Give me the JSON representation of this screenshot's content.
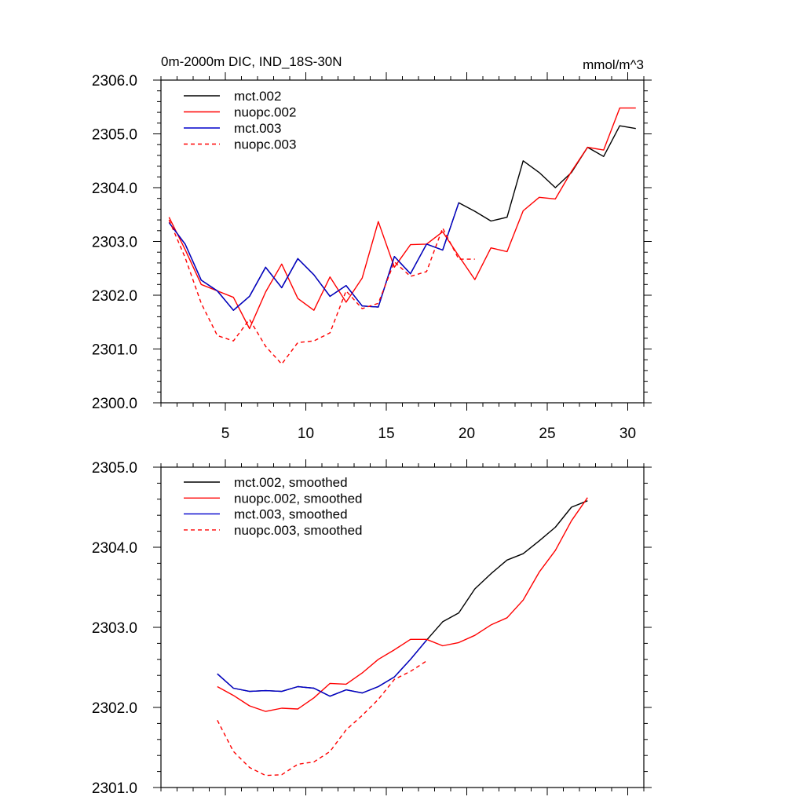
{
  "chart_data": [
    {
      "type": "line",
      "title": "0m-2000m DIC, IND_18S-30N",
      "units": "mmol/m^3",
      "xlim": [
        1,
        31
      ],
      "ylim": [
        2300,
        2306
      ],
      "xticks": [
        5,
        10,
        15,
        20,
        25,
        30
      ],
      "xtick_labels": [
        "5",
        "10",
        "15",
        "20",
        "25",
        "30"
      ],
      "yticks": [
        2300,
        2301,
        2302,
        2303,
        2304,
        2305,
        2306
      ],
      "ytick_labels": [
        "2300.0",
        "2301.0",
        "2302.0",
        "2303.0",
        "2304.0",
        "2305.0",
        "2306.0"
      ],
      "series": [
        {
          "name": "mct.002",
          "color": "#000000",
          "dash": "solid",
          "x": [
            1.5,
            2.5,
            3.5,
            4.5,
            5.5,
            6.5,
            7.5,
            8.5,
            9.5,
            10.5,
            11.5,
            12.5,
            13.5,
            14.5,
            15.5,
            16.5,
            17.5,
            18.5,
            19.5,
            20.5,
            21.5,
            22.5,
            23.5,
            24.5,
            25.5,
            26.5,
            27.5,
            28.5,
            29.5,
            30.5
          ],
          "y": [
            2303.35,
            2302.95,
            2302.28,
            2302.08,
            2301.72,
            2301.98,
            2302.52,
            2302.14,
            2302.68,
            2302.38,
            2301.98,
            2302.18,
            2301.8,
            2301.78,
            2302.72,
            2302.4,
            2302.95,
            2302.84,
            2303.72,
            2303.56,
            2303.38,
            2303.45,
            2304.5,
            2304.28,
            2304.0,
            2304.28,
            2304.75,
            2304.58,
            2305.15,
            2305.1
          ]
        },
        {
          "name": "nuopc.002",
          "color": "#ff0000",
          "dash": "solid",
          "x": [
            1.5,
            2.5,
            3.5,
            4.5,
            5.5,
            6.5,
            7.5,
            8.5,
            9.5,
            10.5,
            11.5,
            12.5,
            13.5,
            14.5,
            15.5,
            16.5,
            17.5,
            18.5,
            19.5,
            20.5,
            21.5,
            22.5,
            23.5,
            24.5,
            25.5,
            26.5,
            27.5,
            28.5,
            29.5,
            30.5
          ],
          "y": [
            2303.45,
            2302.85,
            2302.2,
            2302.08,
            2301.96,
            2301.38,
            2302.06,
            2302.58,
            2301.94,
            2301.72,
            2302.34,
            2301.87,
            2302.32,
            2303.37,
            2302.52,
            2302.94,
            2302.95,
            2303.18,
            2302.73,
            2302.29,
            2302.88,
            2302.81,
            2303.57,
            2303.82,
            2303.79,
            2304.3,
            2304.75,
            2304.7,
            2305.48,
            2305.48
          ]
        },
        {
          "name": "mct.003",
          "color": "#0000cc",
          "dash": "solid",
          "x": [
            1.5,
            2.5,
            3.5,
            4.5,
            5.5,
            6.5,
            7.5,
            8.5,
            9.5,
            10.5,
            11.5,
            12.5,
            13.5,
            14.5,
            15.5,
            16.5,
            17.5,
            18.5,
            19.5
          ],
          "y": [
            2303.35,
            2302.95,
            2302.28,
            2302.08,
            2301.72,
            2301.98,
            2302.52,
            2302.14,
            2302.68,
            2302.38,
            2301.98,
            2302.18,
            2301.8,
            2301.78,
            2302.72,
            2302.4,
            2302.95,
            2302.84,
            2303.72
          ]
        },
        {
          "name": "nuopc.003",
          "color": "#ff0000",
          "dash": "dashed",
          "x": [
            1.5,
            2.5,
            3.5,
            4.5,
            5.5,
            6.5,
            7.5,
            8.5,
            9.5,
            10.5,
            11.5,
            12.5,
            13.5,
            14.5,
            15.5,
            16.5,
            17.5,
            18.5,
            19.5,
            20.5
          ],
          "y": [
            2303.4,
            2302.7,
            2301.85,
            2301.25,
            2301.15,
            2301.55,
            2301.05,
            2300.72,
            2301.12,
            2301.15,
            2301.3,
            2302.08,
            2301.75,
            2301.85,
            2302.62,
            2302.35,
            2302.44,
            2303.25,
            2302.67,
            2302.67
          ]
        }
      ]
    },
    {
      "type": "line",
      "title": "",
      "xlim": [
        1,
        31
      ],
      "ylim": [
        2301,
        2305
      ],
      "xticks": [
        5,
        10,
        15,
        20,
        25,
        30
      ],
      "yticks": [
        2301,
        2302,
        2303,
        2304,
        2305
      ],
      "ytick_labels": [
        "2301.0",
        "2302.0",
        "2303.0",
        "2304.0",
        "2305.0"
      ],
      "series": [
        {
          "name": "mct.002, smoothed",
          "color": "#000000",
          "dash": "solid",
          "x": [
            4.5,
            5.5,
            6.5,
            7.5,
            8.5,
            9.5,
            10.5,
            11.5,
            12.5,
            13.5,
            14.5,
            15.5,
            16.5,
            17.5,
            18.5,
            19.5,
            20.5,
            21.5,
            22.5,
            23.5,
            24.5,
            25.5,
            26.5,
            27.5
          ],
          "y": [
            2302.42,
            2302.24,
            2302.2,
            2302.21,
            2302.2,
            2302.26,
            2302.24,
            2302.14,
            2302.22,
            2302.18,
            2302.26,
            2302.38,
            2302.6,
            2302.84,
            2303.07,
            2303.18,
            2303.48,
            2303.67,
            2303.84,
            2303.92,
            2304.08,
            2304.25,
            2304.5,
            2304.58
          ]
        },
        {
          "name": "nuopc.002, smoothed",
          "color": "#ff0000",
          "dash": "solid",
          "x": [
            4.5,
            5.5,
            6.5,
            7.5,
            8.5,
            9.5,
            10.5,
            11.5,
            12.5,
            13.5,
            14.5,
            15.5,
            16.5,
            17.5,
            18.5,
            19.5,
            20.5,
            21.5,
            22.5,
            23.5,
            24.5,
            25.5,
            26.5,
            27.5
          ],
          "y": [
            2302.26,
            2302.15,
            2302.02,
            2301.95,
            2301.99,
            2301.98,
            2302.12,
            2302.3,
            2302.29,
            2302.43,
            2302.6,
            2302.72,
            2302.85,
            2302.85,
            2302.77,
            2302.81,
            2302.9,
            2303.03,
            2303.12,
            2303.34,
            2303.69,
            2303.96,
            2304.33,
            2304.62
          ]
        },
        {
          "name": "mct.003, smoothed",
          "color": "#0000cc",
          "dash": "solid",
          "x": [
            4.5,
            5.5,
            6.5,
            7.5,
            8.5,
            9.5,
            10.5,
            11.5,
            12.5,
            13.5,
            14.5,
            15.5,
            16.5,
            17.5
          ],
          "y": [
            2302.42,
            2302.24,
            2302.2,
            2302.21,
            2302.2,
            2302.26,
            2302.24,
            2302.14,
            2302.22,
            2302.18,
            2302.26,
            2302.38,
            2302.6,
            2302.84
          ]
        },
        {
          "name": "nuopc.003, smoothed",
          "color": "#ff0000",
          "dash": "dashed",
          "x": [
            4.5,
            5.5,
            6.5,
            7.5,
            8.5,
            9.5,
            10.5,
            11.5,
            12.5,
            13.5,
            14.5,
            15.5,
            16.5,
            17.5
          ],
          "y": [
            2301.84,
            2301.45,
            2301.25,
            2301.15,
            2301.16,
            2301.29,
            2301.32,
            2301.45,
            2301.72,
            2301.9,
            2302.1,
            2302.35,
            2302.45,
            2302.58
          ]
        }
      ]
    }
  ]
}
